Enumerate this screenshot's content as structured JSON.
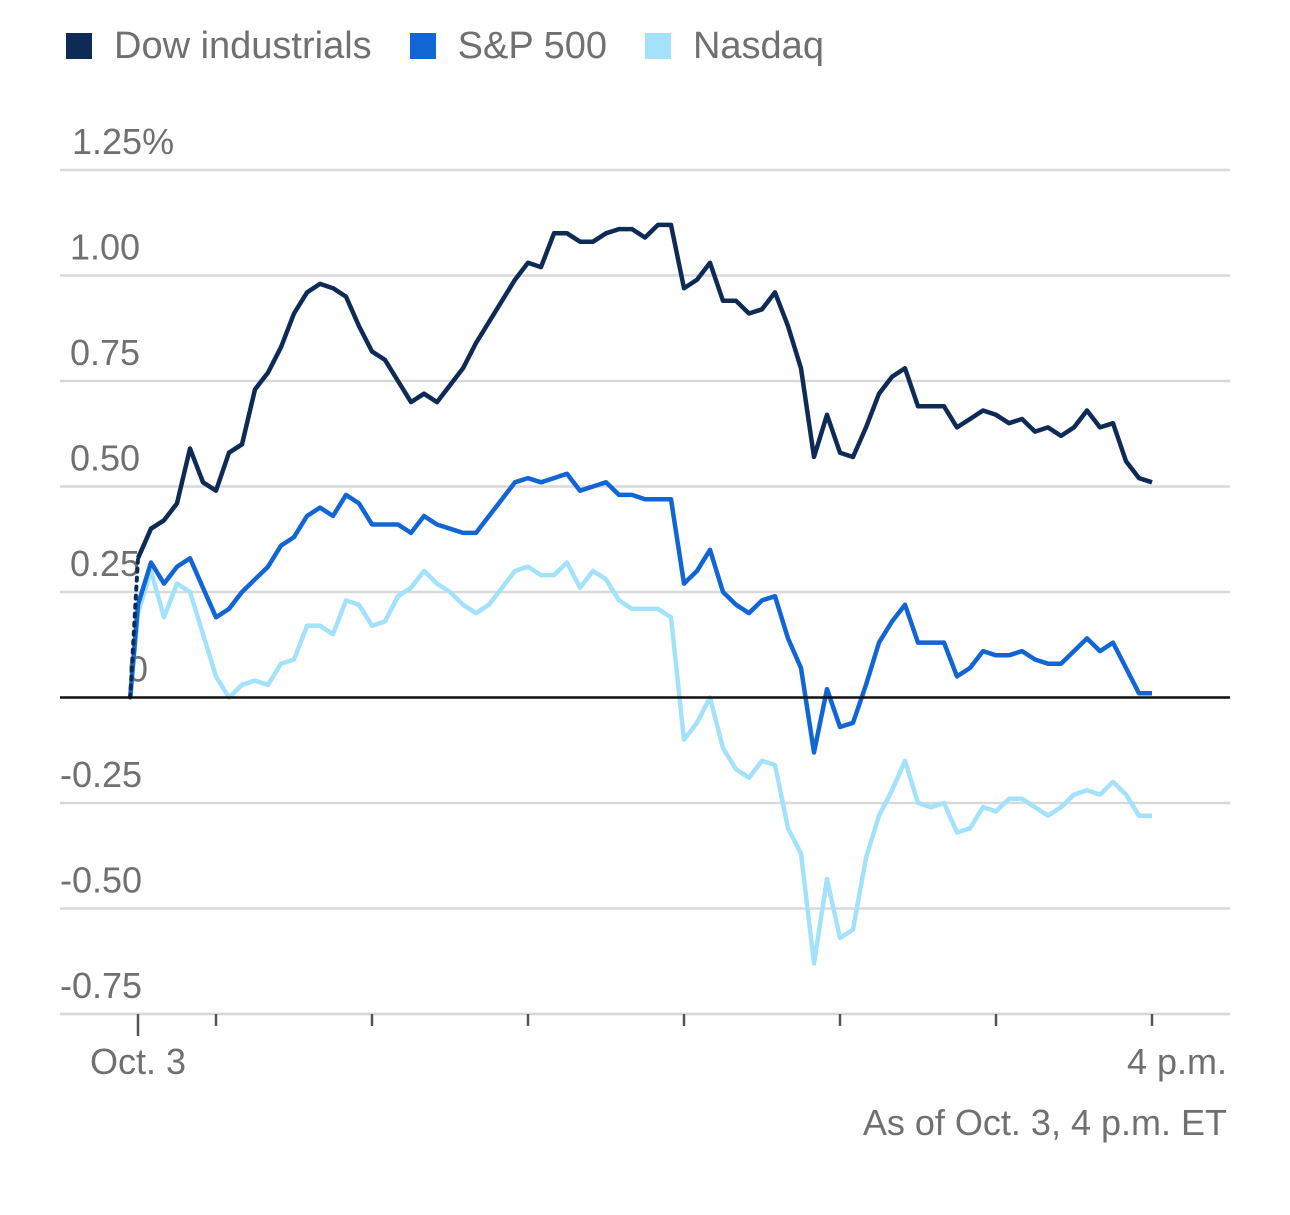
{
  "chart_data": {
    "type": "line",
    "title": "",
    "xlabel": "",
    "ylabel": "",
    "ylim": [
      -0.75,
      1.25
    ],
    "y_ticks": [
      1.25,
      1.0,
      0.75,
      0.5,
      0.25,
      0,
      -0.25,
      -0.5,
      -0.75
    ],
    "y_tick_labels": [
      "1.25%",
      "1.00",
      "0.75",
      "0.50",
      "0.25",
      "0",
      "-0.25",
      "-0.50",
      "-0.75"
    ],
    "x_domain": [
      -30,
      420
    ],
    "x_unit": "minutes after 9:30 a.m. ET",
    "x_tick_positions": [
      0,
      30,
      90,
      150,
      210,
      270,
      330,
      390
    ],
    "x_tick_labels": [
      {
        "x": 0,
        "text": "Oct. 3"
      },
      {
        "x": 390,
        "text": "4 p.m."
      }
    ],
    "footnote": "As of Oct. 3, 4 p.m. ET",
    "legend": [
      "Dow industrials",
      "S&P 500",
      "Nasdaq"
    ],
    "colors": {
      "dow": "#0e2b55",
      "sp500": "#1266d4",
      "nasdaq": "#a4e2fb",
      "grid": "#d9d9d9",
      "zero": "#111111"
    },
    "series": [
      {
        "name": "Dow industrials",
        "key": "dow",
        "x": [
          0,
          5,
          10,
          15,
          20,
          25,
          30,
          35,
          40,
          45,
          50,
          55,
          60,
          65,
          70,
          75,
          80,
          85,
          90,
          95,
          100,
          105,
          110,
          115,
          120,
          125,
          130,
          135,
          140,
          145,
          150,
          155,
          160,
          165,
          170,
          175,
          180,
          185,
          190,
          195,
          200,
          205,
          210,
          215,
          220,
          225,
          230,
          235,
          240,
          245,
          250,
          255,
          260,
          265,
          270,
          275,
          280,
          285,
          290,
          295,
          300,
          305,
          310,
          315,
          320,
          325,
          330,
          335,
          340,
          345,
          350,
          355,
          360,
          365,
          370,
          375,
          380,
          385,
          390
        ],
        "values": [
          0.33,
          0.4,
          0.42,
          0.46,
          0.59,
          0.51,
          0.49,
          0.58,
          0.6,
          0.73,
          0.77,
          0.83,
          0.91,
          0.96,
          0.98,
          0.97,
          0.95,
          0.88,
          0.82,
          0.8,
          0.75,
          0.7,
          0.72,
          0.7,
          0.74,
          0.78,
          0.84,
          0.89,
          0.94,
          0.99,
          1.03,
          1.02,
          1.1,
          1.1,
          1.08,
          1.08,
          1.1,
          1.11,
          1.11,
          1.09,
          1.12,
          1.12,
          0.97,
          0.99,
          1.03,
          0.94,
          0.94,
          0.91,
          0.92,
          0.96,
          0.88,
          0.78,
          0.57,
          0.67,
          0.58,
          0.57,
          0.64,
          0.72,
          0.76,
          0.78,
          0.69,
          0.69,
          0.69,
          0.64,
          0.66,
          0.68,
          0.67,
          0.65,
          0.66,
          0.63,
          0.64,
          0.62,
          0.64,
          0.68,
          0.64,
          0.65,
          0.56,
          0.52,
          0.51
        ]
      },
      {
        "name": "S&P 500",
        "key": "sp500",
        "x": [
          -3,
          0,
          5,
          10,
          15,
          20,
          25,
          30,
          35,
          40,
          45,
          50,
          55,
          60,
          65,
          70,
          75,
          80,
          85,
          90,
          95,
          100,
          105,
          110,
          115,
          120,
          125,
          130,
          135,
          140,
          145,
          150,
          155,
          160,
          165,
          170,
          175,
          180,
          185,
          190,
          195,
          200,
          205,
          210,
          215,
          220,
          225,
          230,
          235,
          240,
          245,
          250,
          255,
          260,
          265,
          270,
          275,
          280,
          285,
          290,
          295,
          300,
          305,
          310,
          315,
          320,
          325,
          330,
          335,
          340,
          345,
          350,
          355,
          360,
          365,
          370,
          375,
          380,
          385,
          390
        ],
        "values": [
          0.0,
          0.22,
          0.32,
          0.27,
          0.31,
          0.33,
          0.26,
          0.19,
          0.21,
          0.25,
          0.28,
          0.31,
          0.36,
          0.38,
          0.43,
          0.45,
          0.43,
          0.48,
          0.46,
          0.41,
          0.41,
          0.41,
          0.39,
          0.43,
          0.41,
          0.4,
          0.39,
          0.39,
          0.43,
          0.47,
          0.51,
          0.52,
          0.51,
          0.52,
          0.53,
          0.49,
          0.5,
          0.51,
          0.48,
          0.48,
          0.47,
          0.47,
          0.47,
          0.27,
          0.3,
          0.35,
          0.25,
          0.22,
          0.2,
          0.23,
          0.24,
          0.14,
          0.07,
          -0.13,
          0.02,
          -0.07,
          -0.06,
          0.03,
          0.13,
          0.18,
          0.22,
          0.13,
          0.13,
          0.13,
          0.05,
          0.07,
          0.11,
          0.1,
          0.1,
          0.11,
          0.09,
          0.08,
          0.08,
          0.11,
          0.14,
          0.11,
          0.13,
          0.07,
          0.01,
          0.01
        ]
      },
      {
        "name": "Nasdaq",
        "key": "nasdaq",
        "x": [
          -3,
          0,
          5,
          10,
          15,
          20,
          25,
          30,
          35,
          40,
          45,
          50,
          55,
          60,
          65,
          70,
          75,
          80,
          85,
          90,
          95,
          100,
          105,
          110,
          115,
          120,
          125,
          130,
          135,
          140,
          145,
          150,
          155,
          160,
          165,
          170,
          175,
          180,
          185,
          190,
          195,
          200,
          205,
          210,
          215,
          220,
          225,
          230,
          235,
          240,
          245,
          250,
          255,
          260,
          265,
          270,
          275,
          280,
          285,
          290,
          295,
          300,
          305,
          310,
          315,
          320,
          325,
          330,
          335,
          340,
          345,
          350,
          355,
          360,
          365,
          370,
          375,
          380,
          385,
          390
        ],
        "values": [
          0.0,
          0.2,
          0.3,
          0.19,
          0.27,
          0.25,
          0.15,
          0.05,
          0.0,
          0.03,
          0.04,
          0.03,
          0.08,
          0.09,
          0.17,
          0.17,
          0.15,
          0.23,
          0.22,
          0.17,
          0.18,
          0.24,
          0.26,
          0.3,
          0.27,
          0.25,
          0.22,
          0.2,
          0.22,
          0.26,
          0.3,
          0.31,
          0.29,
          0.29,
          0.32,
          0.26,
          0.3,
          0.28,
          0.23,
          0.21,
          0.21,
          0.21,
          0.19,
          -0.1,
          -0.06,
          0.0,
          -0.12,
          -0.17,
          -0.19,
          -0.15,
          -0.16,
          -0.31,
          -0.37,
          -0.63,
          -0.43,
          -0.57,
          -0.55,
          -0.38,
          -0.28,
          -0.22,
          -0.15,
          -0.25,
          -0.26,
          -0.25,
          -0.32,
          -0.31,
          -0.26,
          -0.27,
          -0.24,
          -0.24,
          -0.26,
          -0.28,
          -0.26,
          -0.23,
          -0.22,
          -0.23,
          -0.2,
          -0.23,
          -0.28,
          -0.28
        ]
      }
    ]
  }
}
